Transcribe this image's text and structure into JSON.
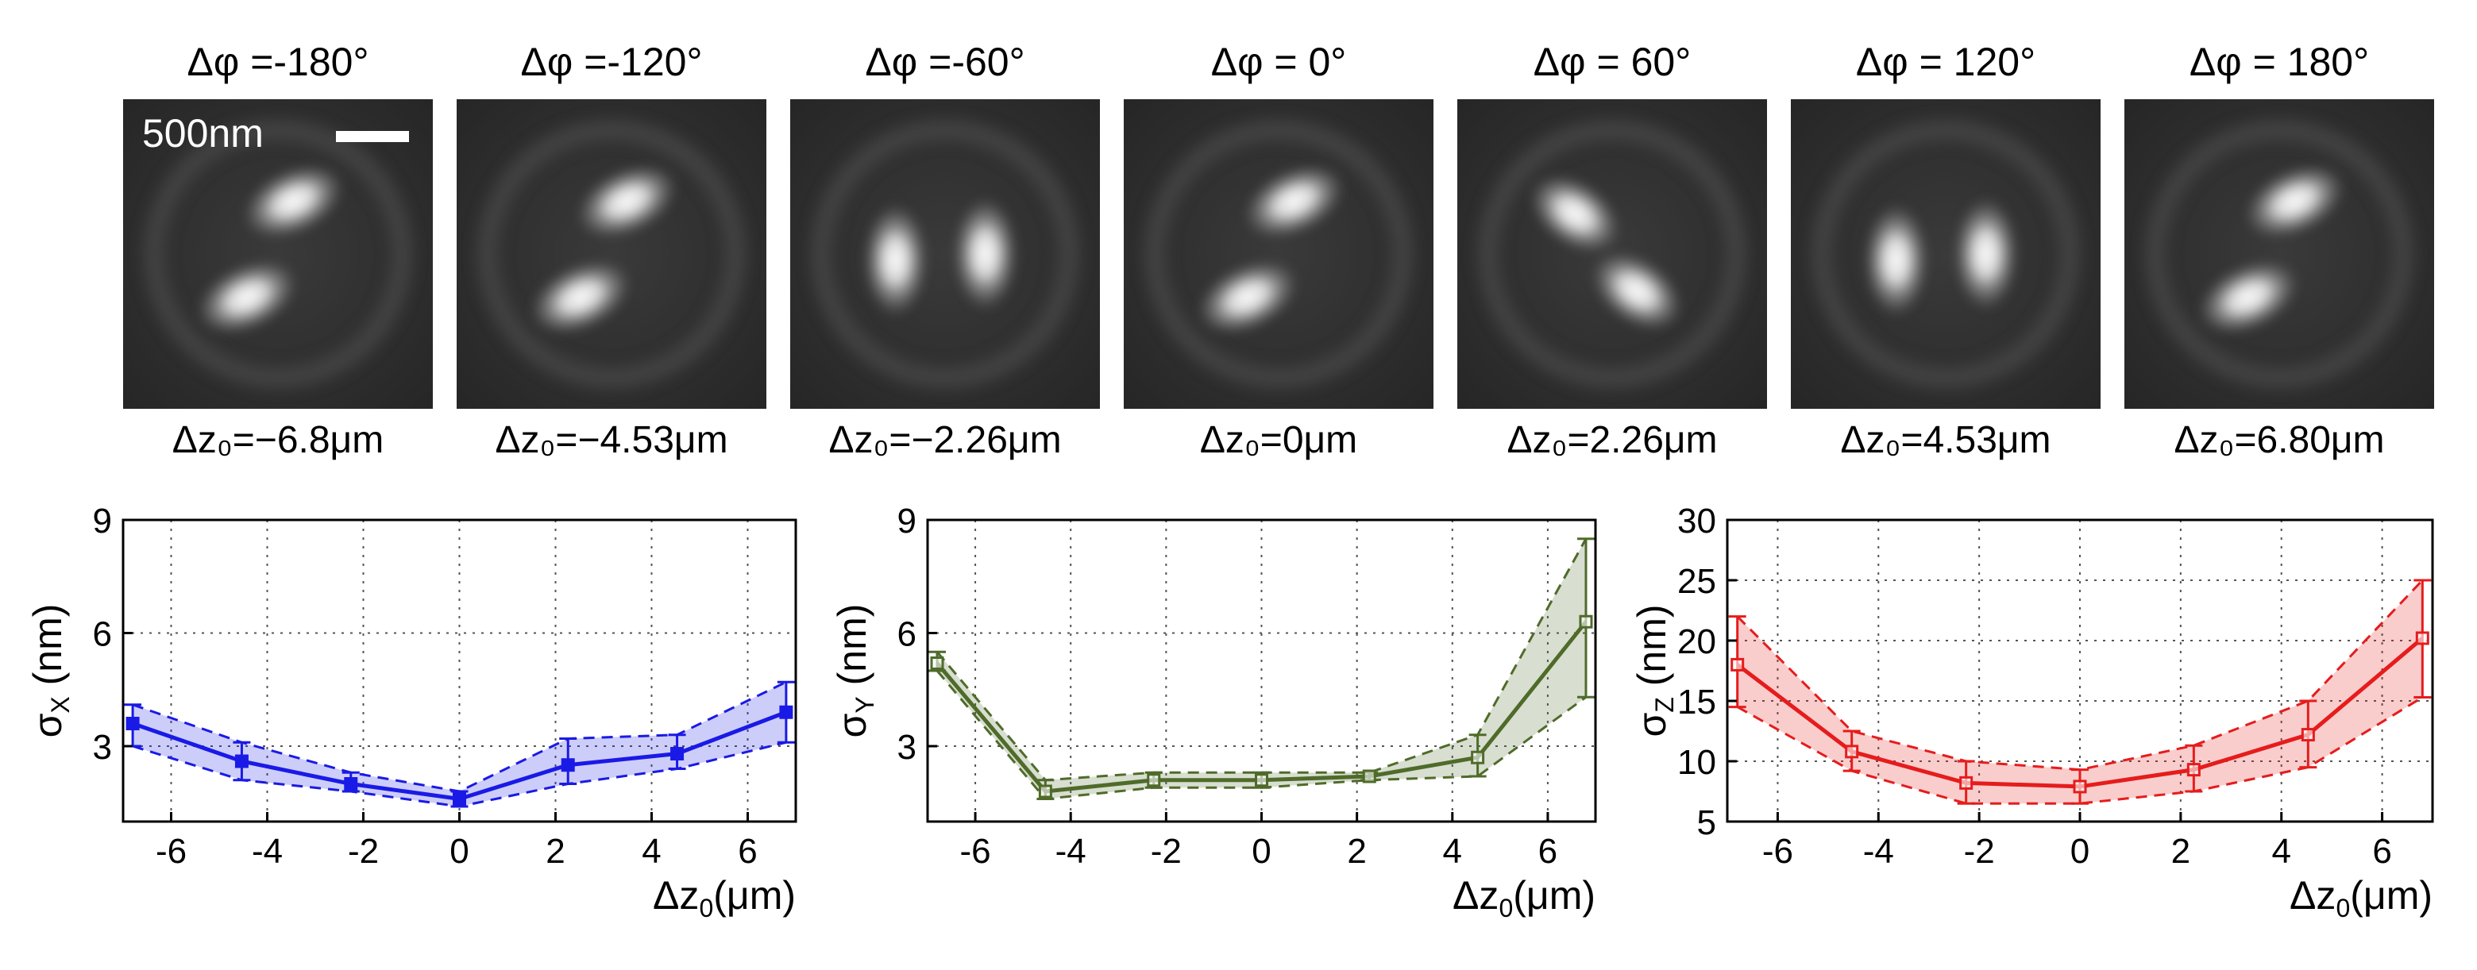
{
  "panels": [
    {
      "phase_label": "Δφ =-180°",
      "dz_label": "Δz₀=−6.8μm",
      "lobe_orientation": "diagonal-left"
    },
    {
      "phase_label": "Δφ =-120°",
      "dz_label": "Δz₀=−4.53μm",
      "lobe_orientation": "diagonal-left"
    },
    {
      "phase_label": "Δφ =-60°",
      "dz_label": "Δz₀=−2.26μm",
      "lobe_orientation": "side-by-side"
    },
    {
      "phase_label": "Δφ = 0°",
      "dz_label": "Δz₀=0μm",
      "lobe_orientation": "diagonal-left"
    },
    {
      "phase_label": "Δφ = 60°",
      "dz_label": "Δz₀=2.26μm",
      "lobe_orientation": "diagonal-right"
    },
    {
      "phase_label": "Δφ = 120°",
      "dz_label": "Δz₀=4.53μm",
      "lobe_orientation": "side-by-side"
    },
    {
      "phase_label": "Δφ = 180°",
      "dz_label": "Δz₀=6.80μm",
      "lobe_orientation": "diagonal-left"
    }
  ],
  "scale_bar_label": "500nm",
  "colors": {
    "x": "#1a1ae6",
    "y": "#4f6b2a",
    "z": "#e61c1c"
  },
  "chart_data": [
    {
      "type": "line",
      "id": "sigma-x",
      "ylabel": "σX (nm)",
      "ylabel_main": "σ",
      "ylabel_sub": "X",
      "ylabel_unit": " (nm)",
      "xlabel": "Δz0(μm)",
      "xlabel_main": "Δz",
      "xlabel_sub": "0",
      "xlabel_unit": "(μm)",
      "xlim": [
        -7,
        7
      ],
      "ylim": [
        1,
        9
      ],
      "xticks": [
        -6,
        -4,
        -2,
        0,
        2,
        4,
        6
      ],
      "yticks": [
        3,
        6,
        9
      ],
      "grid": true,
      "color": "#1a1ae6",
      "marker": "filled-square",
      "x": [
        -6.8,
        -4.53,
        -2.26,
        0,
        2.26,
        4.53,
        6.8
      ],
      "values": [
        3.6,
        2.6,
        2.0,
        1.6,
        2.5,
        2.8,
        3.9
      ],
      "lower": [
        3.0,
        2.1,
        1.8,
        1.4,
        2.0,
        2.4,
        3.1
      ],
      "upper": [
        4.1,
        3.1,
        2.3,
        1.8,
        3.2,
        3.3,
        4.7
      ]
    },
    {
      "type": "line",
      "id": "sigma-y",
      "ylabel": "σY (nm)",
      "ylabel_main": "σ",
      "ylabel_sub": "Y",
      "ylabel_unit": " (nm)",
      "xlabel": "Δz0(μm)",
      "xlabel_main": "Δz",
      "xlabel_sub": "0",
      "xlabel_unit": "(μm)",
      "xlim": [
        -7,
        7
      ],
      "ylim": [
        1,
        9
      ],
      "xticks": [
        -6,
        -4,
        -2,
        0,
        2,
        4,
        6
      ],
      "yticks": [
        3,
        6,
        9
      ],
      "grid": true,
      "color": "#4f6b2a",
      "marker": "open-square",
      "x": [
        -6.8,
        -4.53,
        -2.26,
        0,
        2.26,
        4.53,
        6.8
      ],
      "values": [
        5.2,
        1.8,
        2.1,
        2.1,
        2.2,
        2.7,
        6.3
      ],
      "lower": [
        5.0,
        1.6,
        1.9,
        1.9,
        2.1,
        2.2,
        4.3
      ],
      "upper": [
        5.5,
        2.1,
        2.3,
        2.3,
        2.3,
        3.3,
        8.5
      ]
    },
    {
      "type": "line",
      "id": "sigma-z",
      "ylabel": "σZ (nm)",
      "ylabel_main": "σ",
      "ylabel_sub": "Z",
      "ylabel_unit": " (nm)",
      "xlabel": "Δz0(μm)",
      "xlabel_main": "Δz",
      "xlabel_sub": "0",
      "xlabel_unit": "(μm)",
      "xlim": [
        -7,
        7
      ],
      "ylim": [
        5,
        30
      ],
      "xticks": [
        -6,
        -4,
        -2,
        0,
        2,
        4,
        6
      ],
      "yticks": [
        5,
        10,
        15,
        20,
        25,
        30
      ],
      "grid": true,
      "color": "#e61c1c",
      "marker": "open-square",
      "x": [
        -6.8,
        -4.53,
        -2.26,
        0,
        2.26,
        4.53,
        6.8
      ],
      "values": [
        18,
        10.8,
        8.2,
        7.9,
        9.3,
        12.2,
        20.2
      ],
      "lower": [
        14.5,
        9.2,
        6.5,
        6.5,
        7.5,
        9.5,
        15.3
      ],
      "upper": [
        22,
        12.5,
        10,
        9.3,
        11.3,
        15,
        25
      ]
    }
  ]
}
